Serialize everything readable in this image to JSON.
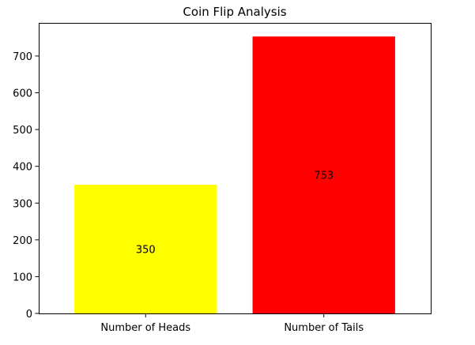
{
  "chart_data": {
    "type": "bar",
    "title": "Coin Flip Analysis",
    "xlabel": "",
    "ylabel": "",
    "categories": [
      "Number of Heads",
      "Number of Tails"
    ],
    "values": [
      350,
      753
    ],
    "bar_labels": [
      "350",
      "753"
    ],
    "colors": [
      "#ffff00",
      "#ff0000"
    ],
    "ylim": [
      0,
      790
    ],
    "yticks": [
      0,
      100,
      200,
      300,
      400,
      500,
      600,
      700
    ],
    "grid": false,
    "legend": "none"
  }
}
